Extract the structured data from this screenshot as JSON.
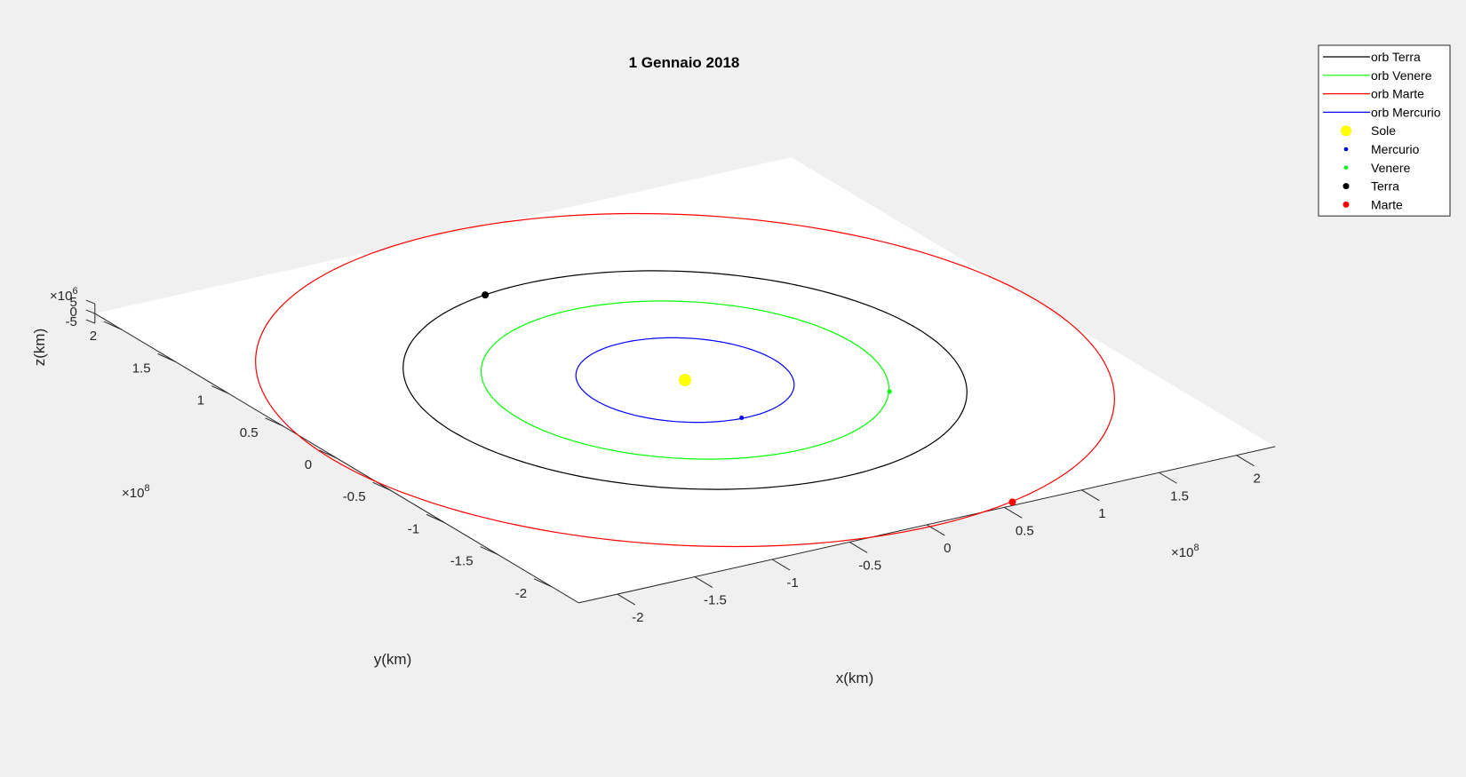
{
  "chart_data": {
    "type": "scatter",
    "view": "3d",
    "title": "1 Gennaio 2018",
    "xlabel": "x(km)",
    "ylabel": "y(km)",
    "zlabel": "z(km)",
    "x_exponent": "×10",
    "x_exponent_power": "8",
    "y_exponent": "×10",
    "y_exponent_power": "8",
    "z_exponent": "×10",
    "z_exponent_power": "6",
    "xlim": [
      -2.25,
      2.25
    ],
    "ylim": [
      -2.25,
      2.25
    ],
    "zlim": [
      -5,
      5
    ],
    "xticks": [
      -2,
      -1.5,
      -1,
      -0.5,
      0,
      0.5,
      1,
      1.5,
      2
    ],
    "xtick_labels": [
      "-2",
      "-1.5",
      "-1",
      "-0.5",
      "0",
      "0.5",
      "1",
      "1.5",
      "2"
    ],
    "yticks": [
      -2,
      -1.5,
      -1,
      -0.5,
      0,
      0.5,
      1,
      1.5,
      2
    ],
    "ytick_labels": [
      "-2",
      "-1.5",
      "-1",
      "-0.5",
      "0",
      "0.5",
      "1",
      "1.5",
      "2"
    ],
    "zticks": [
      -5,
      0,
      5
    ],
    "ztick_labels": [
      "-5",
      "0",
      "5"
    ],
    "grid": false,
    "legend_position": "top-right",
    "orbits": [
      {
        "name": "orb Terra",
        "color": "#000000",
        "radius": 1.496
      },
      {
        "name": "orb Venere",
        "color": "#00ff00",
        "radius": 1.082
      },
      {
        "name": "orb Marte",
        "color": "#ff0000",
        "radius": 2.279
      },
      {
        "name": "orb Mercurio",
        "color": "#0000ff",
        "radius": 0.579
      }
    ],
    "bodies": [
      {
        "name": "Sole",
        "color": "#ffff00",
        "x": 0,
        "y": 0,
        "size": "large"
      },
      {
        "name": "Mercurio",
        "color": "#0000ff",
        "x": -0.03,
        "y": -0.57,
        "size": "small"
      },
      {
        "name": "Venere",
        "color": "#00ff00",
        "x": 0.87,
        "y": -0.65,
        "size": "small"
      },
      {
        "name": "Terra",
        "color": "#000000",
        "x": -0.27,
        "y": 1.47,
        "size": "medium"
      },
      {
        "name": "Marte",
        "color": "#ff0000",
        "x": 0.58,
        "y": -2.21,
        "size": "medium"
      }
    ]
  }
}
